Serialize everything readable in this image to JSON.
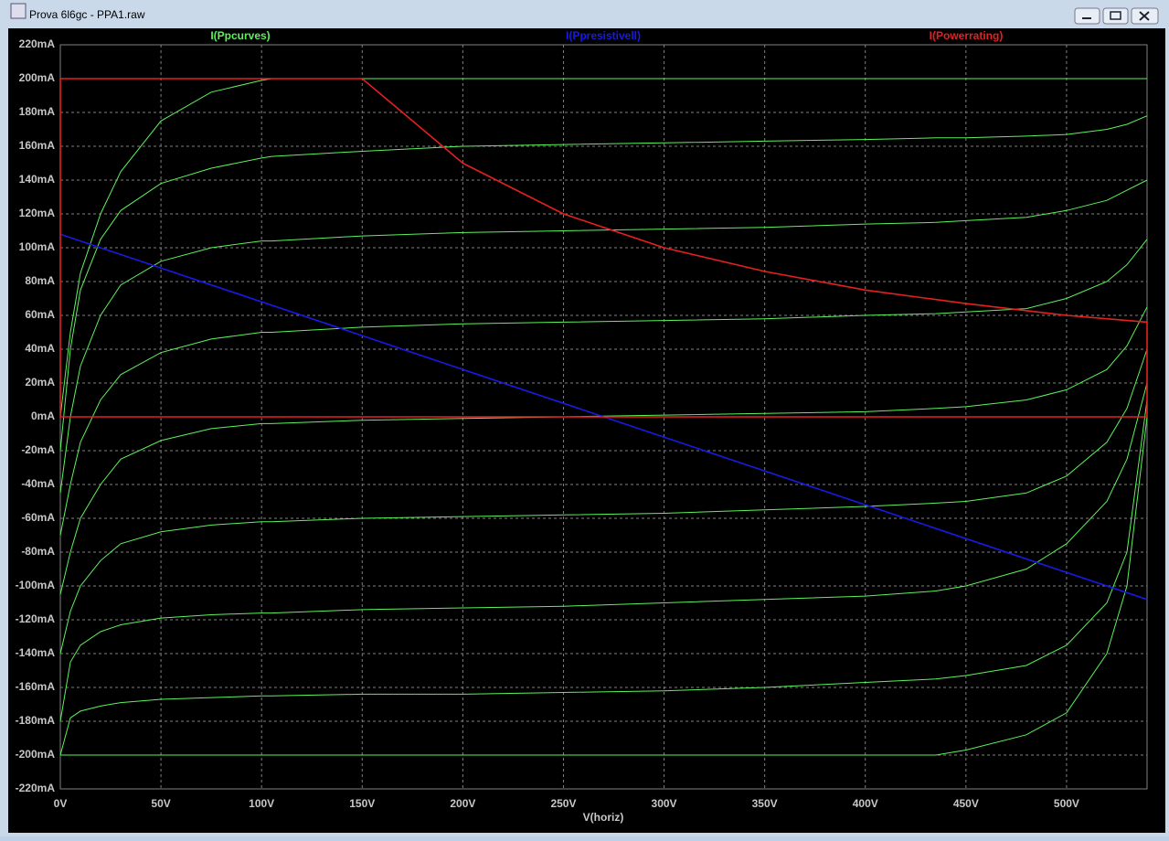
{
  "window": {
    "title": "Prova 6l6gc - PPA1.raw"
  },
  "chart_data": {
    "type": "line",
    "x_label": "V(horiz)",
    "xlim": [
      0,
      540
    ],
    "ylim": [
      -220,
      220
    ],
    "xticks": [
      {
        "value": 0,
        "label": "0V"
      },
      {
        "value": 50,
        "label": "50V"
      },
      {
        "value": 100,
        "label": "100V"
      },
      {
        "value": 150,
        "label": "150V"
      },
      {
        "value": 200,
        "label": "200V"
      },
      {
        "value": 250,
        "label": "250V"
      },
      {
        "value": 300,
        "label": "300V"
      },
      {
        "value": 350,
        "label": "350V"
      },
      {
        "value": 400,
        "label": "400V"
      },
      {
        "value": 450,
        "label": "450V"
      },
      {
        "value": 500,
        "label": "500V"
      }
    ],
    "yticks": [
      {
        "value": 220,
        "label": "220mA"
      },
      {
        "value": 200,
        "label": "200mA"
      },
      {
        "value": 180,
        "label": "180mA"
      },
      {
        "value": 160,
        "label": "160mA"
      },
      {
        "value": 140,
        "label": "140mA"
      },
      {
        "value": 120,
        "label": "120mA"
      },
      {
        "value": 100,
        "label": "100mA"
      },
      {
        "value": 80,
        "label": "80mA"
      },
      {
        "value": 60,
        "label": "60mA"
      },
      {
        "value": 40,
        "label": "40mA"
      },
      {
        "value": 20,
        "label": "20mA"
      },
      {
        "value": 0,
        "label": "0mA"
      },
      {
        "value": -20,
        "label": "-20mA"
      },
      {
        "value": -40,
        "label": "-40mA"
      },
      {
        "value": -60,
        "label": "-60mA"
      },
      {
        "value": -80,
        "label": "-80mA"
      },
      {
        "value": -100,
        "label": "-100mA"
      },
      {
        "value": -120,
        "label": "-120mA"
      },
      {
        "value": -140,
        "label": "-140mA"
      },
      {
        "value": -160,
        "label": "-160mA"
      },
      {
        "value": -180,
        "label": "-180mA"
      },
      {
        "value": -200,
        "label": "-200mA"
      },
      {
        "value": -220,
        "label": "-220mA"
      }
    ],
    "grid": true,
    "series": [
      {
        "name": "I(Ppcurves)",
        "color": "#5cf25c",
        "x": [
          0,
          5,
          10,
          20,
          30,
          50,
          75,
          100,
          105,
          150,
          200,
          250,
          300,
          350,
          400,
          435,
          450,
          480,
          500,
          520,
          530,
          540
        ],
        "curves": [
          [
            0,
            50,
            85,
            120,
            145,
            175,
            192,
            199,
            200,
            200,
            200,
            200,
            200,
            200,
            200,
            200,
            200,
            200,
            200,
            200,
            200,
            200
          ],
          [
            -20,
            40,
            75,
            105,
            122,
            138,
            147,
            153,
            154,
            157,
            160,
            161,
            162,
            163,
            164,
            165,
            165,
            166,
            167,
            170,
            173,
            178
          ],
          [
            -45,
            0,
            30,
            60,
            78,
            92,
            100,
            104,
            104,
            107,
            109,
            110,
            111,
            112,
            114,
            115,
            116,
            118,
            122,
            128,
            134,
            140
          ],
          [
            -70,
            -40,
            -15,
            10,
            25,
            38,
            46,
            50,
            50,
            53,
            55,
            56,
            57,
            58,
            60,
            61,
            62,
            64,
            70,
            80,
            90,
            105
          ],
          [
            -105,
            -80,
            -60,
            -40,
            -25,
            -14,
            -7,
            -4,
            -4,
            -2,
            -1,
            0,
            1,
            2,
            3,
            5,
            6,
            10,
            16,
            28,
            42,
            65
          ],
          [
            -140,
            -115,
            -100,
            -85,
            -75,
            -68,
            -64,
            -62,
            -62,
            -60,
            -59,
            -58,
            -57,
            -55,
            -53,
            -51,
            -50,
            -45,
            -35,
            -15,
            5,
            40
          ],
          [
            -180,
            -145,
            -135,
            -127,
            -123,
            -119,
            -117,
            -116,
            -116,
            -114,
            -113,
            -112,
            -110,
            -108,
            -106,
            -103,
            -100,
            -90,
            -75,
            -50,
            -25,
            20
          ],
          [
            -200,
            -178,
            -174,
            -171,
            -169,
            -167,
            -166,
            -165,
            -165,
            -164,
            -164,
            -163,
            -162,
            -160,
            -157,
            -155,
            -153,
            -147,
            -135,
            -110,
            -80,
            10
          ],
          [
            -200,
            -200,
            -200,
            -200,
            -200,
            -200,
            -200,
            -200,
            -200,
            -200,
            -200,
            -200,
            -200,
            -200,
            -200,
            -200,
            -197,
            -188,
            -175,
            -140,
            -100,
            0
          ]
        ]
      },
      {
        "name": "I(Ppresistivell)",
        "color": "#1a1ae6",
        "x": [
          0,
          540
        ],
        "values": [
          108,
          -108
        ]
      },
      {
        "name": "I(Powerrating)",
        "color": "#e62020",
        "x": [
          0,
          0,
          150,
          200,
          250,
          300,
          350,
          400,
          450,
          500,
          540,
          540,
          0
        ],
        "values": [
          0,
          200,
          200,
          150,
          120,
          100,
          86,
          75,
          67,
          60,
          56,
          0,
          0
        ]
      }
    ]
  }
}
